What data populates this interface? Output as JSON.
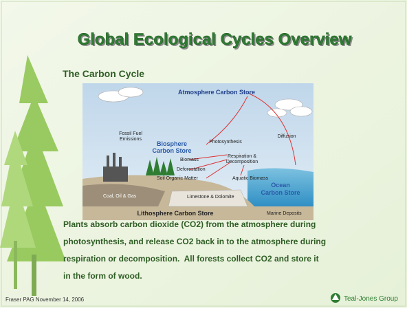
{
  "slide": {
    "title": "Global Ecological Cycles Overview",
    "subtitle": "The Carbon Cycle",
    "diagram": {
      "atmosphere": "Atmosphere Carbon Store",
      "fossil_fuel": [
        "Fossil Fuel",
        "Emissions"
      ],
      "biosphere": [
        "Biosphere",
        "Carbon Store"
      ],
      "photosynthesis": "Photosynthesis",
      "diffusion": "Diffusion",
      "respiration": [
        "Respiration &",
        "Decomposition"
      ],
      "biomass": "Biomass",
      "deforestation": "Deforestation",
      "soil": "Soil Organic Matter",
      "aquatic": "Aquatic Biomass",
      "ocean": [
        "Ocean",
        "Carbon Store"
      ],
      "coal": "Coal, Oil & Gas",
      "limestone": "Limestone & Dolomite",
      "lithosphere": "Lithosphere Carbon Store",
      "marine": "Marine Deposits"
    },
    "body": [
      "Plants absorb carbon dioxide (CO2) from the atmosphere during",
      "photosynthesis, and release CO2 back in to the atmosphere during",
      "respiration or decomposition.  All forests collect CO2 and store it",
      "in the form of wood."
    ],
    "footer": "Fraser PAG November 14, 2006",
    "logo": "Teal-Jones Group"
  }
}
